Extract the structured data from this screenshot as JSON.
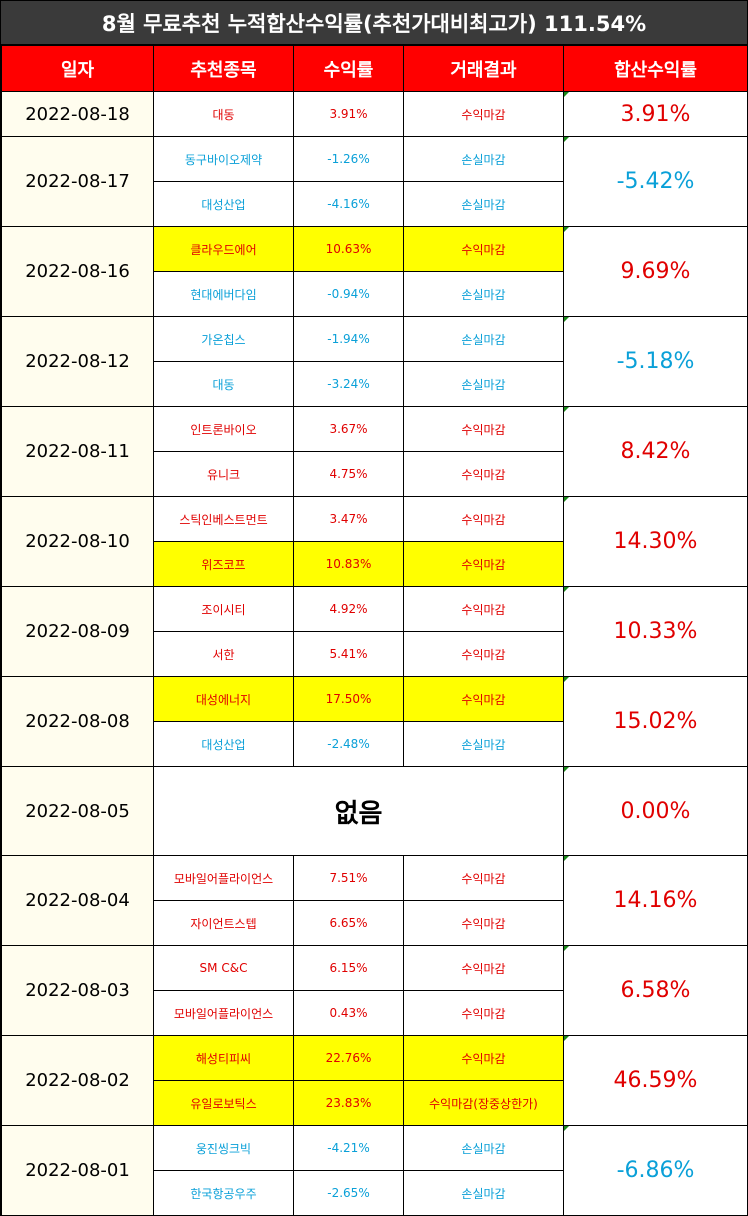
{
  "title": "8월 무료추천 누적합산수익률(추천가대비최고가) 111.54%",
  "headers": [
    "일자",
    "추천종목",
    "수익률",
    "거래결과",
    "합산수익률"
  ],
  "colors": {
    "profit": "#e00000",
    "loss": "#0aa0d8",
    "highlight": "#ffff00",
    "header": "#ff0000"
  },
  "rows": [
    {
      "date": "2022-08-18",
      "total": "3.91%",
      "total_color": "red",
      "stocks": [
        {
          "name": "대동",
          "rate": "3.91%",
          "result": "수익마감",
          "color": "red",
          "highlight": false
        }
      ]
    },
    {
      "date": "2022-08-17",
      "total": "-5.42%",
      "total_color": "blue",
      "stocks": [
        {
          "name": "동구바이오제약",
          "rate": "-1.26%",
          "result": "손실마감",
          "color": "blue",
          "highlight": false
        },
        {
          "name": "대성산업",
          "rate": "-4.16%",
          "result": "손실마감",
          "color": "blue",
          "highlight": false
        }
      ]
    },
    {
      "date": "2022-08-16",
      "total": "9.69%",
      "total_color": "red",
      "stocks": [
        {
          "name": "클라우드에어",
          "rate": "10.63%",
          "result": "수익마감",
          "color": "red",
          "highlight": true
        },
        {
          "name": "현대에버다임",
          "rate": "-0.94%",
          "result": "손실마감",
          "color": "blue",
          "highlight": false
        }
      ]
    },
    {
      "date": "2022-08-12",
      "total": "-5.18%",
      "total_color": "blue",
      "stocks": [
        {
          "name": "가온칩스",
          "rate": "-1.94%",
          "result": "손실마감",
          "color": "blue",
          "highlight": false
        },
        {
          "name": "대동",
          "rate": "-3.24%",
          "result": "손실마감",
          "color": "blue",
          "highlight": false
        }
      ]
    },
    {
      "date": "2022-08-11",
      "total": "8.42%",
      "total_color": "red",
      "stocks": [
        {
          "name": "인트론바이오",
          "rate": "3.67%",
          "result": "수익마감",
          "color": "red",
          "highlight": false
        },
        {
          "name": "유니크",
          "rate": "4.75%",
          "result": "수익마감",
          "color": "red",
          "highlight": false
        }
      ]
    },
    {
      "date": "2022-08-10",
      "total": "14.30%",
      "total_color": "red",
      "stocks": [
        {
          "name": "스틱인베스트먼트",
          "rate": "3.47%",
          "result": "수익마감",
          "color": "red",
          "highlight": false
        },
        {
          "name": "위즈코프",
          "rate": "10.83%",
          "result": "수익마감",
          "color": "red",
          "highlight": true
        }
      ]
    },
    {
      "date": "2022-08-09",
      "total": "10.33%",
      "total_color": "red",
      "stocks": [
        {
          "name": "조이시티",
          "rate": "4.92%",
          "result": "수익마감",
          "color": "red",
          "highlight": false
        },
        {
          "name": "서한",
          "rate": "5.41%",
          "result": "수익마감",
          "color": "red",
          "highlight": false
        }
      ]
    },
    {
      "date": "2022-08-08",
      "total": "15.02%",
      "total_color": "red",
      "stocks": [
        {
          "name": "대성에너지",
          "rate": "17.50%",
          "result": "수익마감",
          "color": "red",
          "highlight": true
        },
        {
          "name": "대성산업",
          "rate": "-2.48%",
          "result": "손실마감",
          "color": "blue",
          "highlight": false
        }
      ]
    },
    {
      "date": "2022-08-05",
      "total": "0.00%",
      "total_color": "red",
      "none_label": "없음",
      "stocks": []
    },
    {
      "date": "2022-08-04",
      "total": "14.16%",
      "total_color": "red",
      "stocks": [
        {
          "name": "모바일어플라이언스",
          "rate": "7.51%",
          "result": "수익마감",
          "color": "red",
          "highlight": false
        },
        {
          "name": "자이언트스텝",
          "rate": "6.65%",
          "result": "수익마감",
          "color": "red",
          "highlight": false
        }
      ]
    },
    {
      "date": "2022-08-03",
      "total": "6.58%",
      "total_color": "red",
      "stocks": [
        {
          "name": "SM C&C",
          "rate": "6.15%",
          "result": "수익마감",
          "color": "red",
          "highlight": false
        },
        {
          "name": "모바일어플라이언스",
          "rate": "0.43%",
          "result": "수익마감",
          "color": "red",
          "highlight": false
        }
      ]
    },
    {
      "date": "2022-08-02",
      "total": "46.59%",
      "total_color": "red",
      "stocks": [
        {
          "name": "해성티피씨",
          "rate": "22.76%",
          "result": "수익마감",
          "color": "red",
          "highlight": true
        },
        {
          "name": "유일로보틱스",
          "rate": "23.83%",
          "result": "수익마감(장중상한가)",
          "color": "red",
          "highlight": true
        }
      ]
    },
    {
      "date": "2022-08-01",
      "total": "-6.86%",
      "total_color": "blue",
      "stocks": [
        {
          "name": "웅진씽크빅",
          "rate": "-4.21%",
          "result": "손실마감",
          "color": "blue",
          "highlight": false
        },
        {
          "name": "한국항공우주",
          "rate": "-2.65%",
          "result": "손실마감",
          "color": "blue",
          "highlight": false
        }
      ]
    }
  ]
}
